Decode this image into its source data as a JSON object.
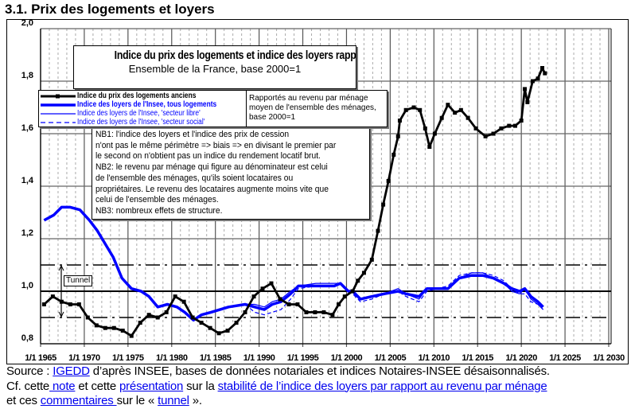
{
  "page_title": "3.1. Prix des logements et loyers",
  "chart_data": {
    "type": "line",
    "title": "Indice du prix des logements et indice des loyers rapportés au revenu par ménage",
    "subtitle": "Ensemble de la France, base 2000=1",
    "note": [
      "Rapportés au revenu  par ménage",
      "moyen de l'ensemble des ménages,",
      "base 2000=1"
    ],
    "nb": [
      "NB1: l'indice des loyers et l'indice des prix de cession",
      "n'ont pas le même périmètre => biais => en divisant le premier par",
      "le second on n'obtient pas un indice du rendement locatif brut.",
      "NB2: le revenu par ménage qui figure au dénominateur est celui",
      "de l'ensemble des ménages, qu'ils soient locataires ou",
      "propriétaires.  Le revenu des locataires augmente moins vite que",
      "celui de l'ensemble des ménages.",
      "NB3: nombreux effets de structure."
    ],
    "tunnel_label": "Tunnel",
    "tunnel_bounds": [
      0.9,
      1.1
    ],
    "reference_line": 1.0,
    "ylim": [
      0.8,
      2.0
    ],
    "yticks": [
      "0,8",
      "1,0",
      "1,2",
      "1,4",
      "1,6",
      "1,8",
      "2,0"
    ],
    "ytick_values": [
      0.8,
      1.0,
      1.2,
      1.4,
      1.6,
      1.8,
      2.0
    ],
    "xlim": [
      1965,
      2030
    ],
    "xticks": [
      "1/1 1965",
      "1/1 1970",
      "1/1 1975",
      "1/1 1980",
      "1/1 1985",
      "1/1 1990",
      "1/1 1995",
      "1/1 2000",
      "1/1 2005",
      "1/1 2010",
      "1/1 2015",
      "1/1 2020",
      "1/1 2025",
      "1/1 2030"
    ],
    "xtick_values": [
      1965,
      1970,
      1975,
      1980,
      1985,
      1990,
      1995,
      2000,
      2005,
      2010,
      2015,
      2020,
      2025,
      2030
    ],
    "grid": true,
    "legend_position": "top-left",
    "series": [
      {
        "name": "Indice du prix des logements anciens",
        "color": "#000000",
        "style": "solid-markers",
        "x": [
          1965.4,
          1966.4,
          1967.4,
          1968.4,
          1969.4,
          1970.4,
          1971.4,
          1972.4,
          1973.4,
          1974.4,
          1975.4,
          1976.4,
          1977.4,
          1978.4,
          1979.4,
          1980.4,
          1981.4,
          1982.4,
          1983.4,
          1984.4,
          1985.4,
          1986.4,
          1987.4,
          1988.4,
          1989.4,
          1990.4,
          1991.4,
          1992.4,
          1993.4,
          1994.4,
          1995.4,
          1996.4,
          1997.4,
          1998.4,
          1999.1,
          1999.8,
          2000.7,
          2001.3,
          2002.0,
          2002.9,
          2003.6,
          2004.2,
          2004.8,
          2005.4,
          2005.9,
          2006.1,
          2006.8,
          2007.7,
          2008.4,
          2009.0,
          2009.5,
          2010.1,
          2010.9,
          2011.6,
          2012.4,
          2013.1,
          2013.9,
          2014.8,
          2015.9,
          2016.8,
          2017.7,
          2018.6,
          2019.3,
          2020.0,
          2020.4,
          2020.7,
          2021.3,
          2021.9,
          2022.4,
          2022.7
        ],
        "y": [
          0.95,
          0.98,
          0.96,
          0.95,
          0.95,
          0.9,
          0.87,
          0.86,
          0.86,
          0.85,
          0.83,
          0.88,
          0.91,
          0.9,
          0.92,
          0.98,
          0.96,
          0.9,
          0.88,
          0.86,
          0.84,
          0.85,
          0.88,
          0.92,
          0.98,
          1.01,
          1.03,
          0.97,
          0.95,
          0.95,
          0.92,
          0.92,
          0.92,
          0.91,
          0.95,
          0.98,
          1.0,
          1.04,
          1.07,
          1.12,
          1.23,
          1.33,
          1.42,
          1.52,
          1.59,
          1.65,
          1.69,
          1.7,
          1.69,
          1.62,
          1.55,
          1.6,
          1.66,
          1.71,
          1.68,
          1.69,
          1.66,
          1.62,
          1.59,
          1.6,
          1.62,
          1.63,
          1.63,
          1.65,
          1.77,
          1.72,
          1.8,
          1.81,
          1.85,
          1.83
        ]
      },
      {
        "name": "Indice des loyers de l'Insee, tous logements",
        "color": "#0000ff",
        "style": "thick",
        "x": [
          1965.4,
          1966.5,
          1967.4,
          1968.4,
          1969.5,
          1970.6,
          1971.5,
          1972.4,
          1973.3,
          1974.3,
          1975.4,
          1976.5,
          1977.4,
          1978.4,
          1979.5,
          1980.6,
          1981.5,
          1982.5,
          1983.4,
          1984.5,
          1986.5,
          1988.4,
          1989.5,
          1990.6,
          1991.5,
          1992.5,
          1993.6,
          1994.5,
          1996.5,
          1998.6,
          1999.3,
          2000.2,
          2000.7,
          2001.6,
          2002.9,
          2004.3,
          2005.9,
          2006.8,
          2008.3,
          2009.2,
          2010.4,
          2011.6,
          2012.9,
          2014.3,
          2015.6,
          2016.8,
          2018.0,
          2018.9,
          2019.8,
          2020.4,
          2021.1,
          2021.9,
          2022.5
        ],
        "y": [
          1.27,
          1.29,
          1.32,
          1.32,
          1.31,
          1.27,
          1.23,
          1.18,
          1.13,
          1.05,
          1.01,
          1.0,
          0.98,
          0.94,
          0.95,
          0.94,
          0.92,
          0.89,
          0.91,
          0.92,
          0.94,
          0.95,
          0.94,
          0.93,
          0.95,
          0.96,
          0.99,
          1.02,
          1.02,
          1.02,
          1.03,
          1.0,
          1.0,
          0.97,
          0.98,
          0.99,
          1.0,
          0.99,
          0.98,
          1.01,
          1.01,
          1.01,
          1.05,
          1.06,
          1.06,
          1.05,
          1.03,
          1.01,
          1.0,
          1.01,
          0.98,
          0.96,
          0.94
        ]
      },
      {
        "name": "Indice des loyers de l'Insee, 'secteur libre'",
        "color": "#0000ff",
        "style": "thin",
        "x": [
          1988.4,
          1989.5,
          1990.6,
          1991.5,
          1992.5,
          1993.6,
          1994.5,
          1996.5,
          1998.6,
          1999.3,
          2000.2,
          2000.7,
          2001.6,
          2002.9,
          2004.3,
          2005.9,
          2006.8,
          2008.3,
          2009.2,
          2010.4,
          2011.6,
          2012.9,
          2014.3,
          2015.6,
          2016.8,
          2018.0,
          2018.9,
          2019.8,
          2020.4,
          2021.1,
          2021.9,
          2022.5
        ],
        "y": [
          0.95,
          0.95,
          0.94,
          0.96,
          0.97,
          1.0,
          1.02,
          1.03,
          1.03,
          1.03,
          1.0,
          1.0,
          0.97,
          0.98,
          0.99,
          1.01,
          0.99,
          0.97,
          1.01,
          1.01,
          1.01,
          1.05,
          1.07,
          1.07,
          1.05,
          1.03,
          1.0,
          0.99,
          1.01,
          0.97,
          0.95,
          0.93
        ]
      },
      {
        "name": "Indice des loyers de l'Insee, 'secteur social'",
        "color": "#0000ff",
        "style": "dashed",
        "x": [
          1988.4,
          1989.5,
          1990.6,
          1991.5,
          1992.5,
          1993.6,
          1994.5,
          1996.5,
          1998.6,
          1999.3,
          2000.2,
          2000.7,
          2001.6,
          2002.9,
          2004.3,
          2005.9,
          2006.8,
          2008.3,
          2009.2,
          2010.4,
          2011.6,
          2012.9,
          2014.3,
          2015.6,
          2016.8,
          2018.0,
          2018.9,
          2019.8,
          2020.4,
          2021.1,
          2021.9,
          2022.5
        ],
        "y": [
          0.95,
          0.92,
          0.91,
          0.92,
          0.93,
          0.97,
          1.01,
          1.02,
          1.02,
          1.03,
          1.0,
          0.99,
          0.96,
          0.97,
          0.99,
          1.0,
          0.98,
          0.96,
          1.0,
          1.01,
          1.02,
          1.06,
          1.07,
          1.07,
          1.06,
          1.04,
          1.01,
          0.99,
          0.99,
          0.96,
          0.95,
          0.93
        ]
      }
    ]
  },
  "footer": {
    "line1_prefix": "Source : ",
    "link_igedd": "IGEDD",
    "line1_suffix": " d’après INSEE, bases de données notariales et indices Notaires-INSEE désaisonnalisés.",
    "line2_prefix": "Cf. cette",
    "link_note": " note",
    "line2_mid1": " et cette ",
    "link_presentation": "présentation",
    "line2_mid2": " sur la ",
    "link_stabilite": "stabilité de l’indice des loyers par rapport au revenu par ménage",
    "line3_prefix": "et ces ",
    "link_commentaires": "commentaires ",
    "line3_mid": "sur le « ",
    "link_tunnel": "tunnel",
    "line3_suffix": " »."
  }
}
